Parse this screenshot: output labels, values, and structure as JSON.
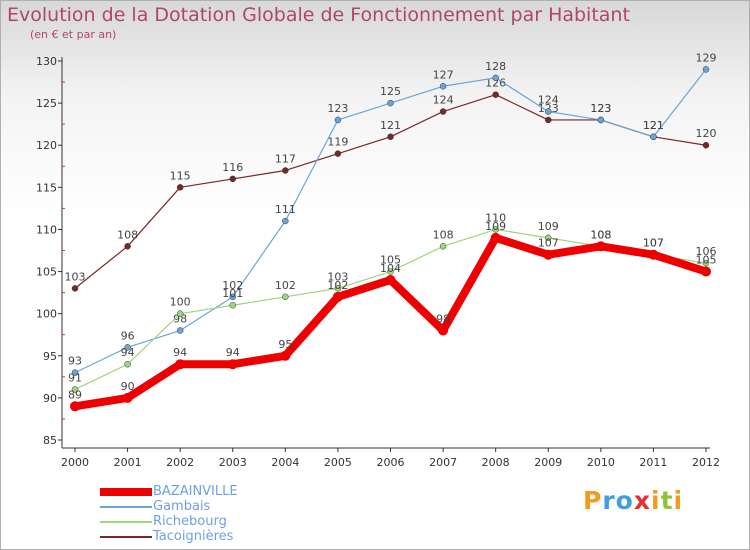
{
  "header": {
    "title": "Evolution de la Dotation Globale de Fonctionnement par Habitant",
    "subtitle": "(en € et par an)"
  },
  "logo": {
    "letters": [
      "P",
      "r",
      "o",
      "x",
      "i",
      "t",
      "i"
    ],
    "colors": [
      "#f39a1f",
      "#3f9ee0",
      "#3f9ee0",
      "#e63030",
      "#f39a1f",
      "#8fc43a",
      "#f39a1f"
    ]
  },
  "chart_data": {
    "type": "line",
    "x": [
      "2000",
      "2001",
      "2002",
      "2003",
      "2004",
      "2005",
      "2006",
      "2007",
      "2008",
      "2009",
      "2010",
      "2011",
      "2012"
    ],
    "ylim": [
      85,
      130
    ],
    "yticks": [
      "85",
      "90",
      "95",
      "100",
      "105",
      "110",
      "115",
      "120",
      "125",
      "130"
    ],
    "grid": false,
    "legend": "bottom-left",
    "series": [
      {
        "name": "Tacoignières",
        "color": "#7a2727",
        "values": [
          103,
          108,
          115,
          116,
          117,
          119,
          121,
          124,
          126,
          123,
          123,
          121,
          120
        ]
      },
      {
        "name": "Gambais",
        "color": "#6aa5d6",
        "values": [
          93,
          96,
          98,
          102,
          111,
          123,
          125,
          127,
          128,
          124,
          123,
          121,
          129
        ]
      },
      {
        "name": "Richebourg",
        "color": "#9ed67b",
        "values": [
          91,
          94,
          100,
          101,
          102,
          103,
          105,
          108,
          110,
          109,
          108,
          107,
          106
        ]
      },
      {
        "name": "BAZAINVILLE",
        "color": "#ee0000",
        "values": [
          89,
          90,
          94,
          94,
          95,
          102,
          104,
          98,
          109,
          107,
          108,
          107,
          105
        ]
      }
    ]
  }
}
